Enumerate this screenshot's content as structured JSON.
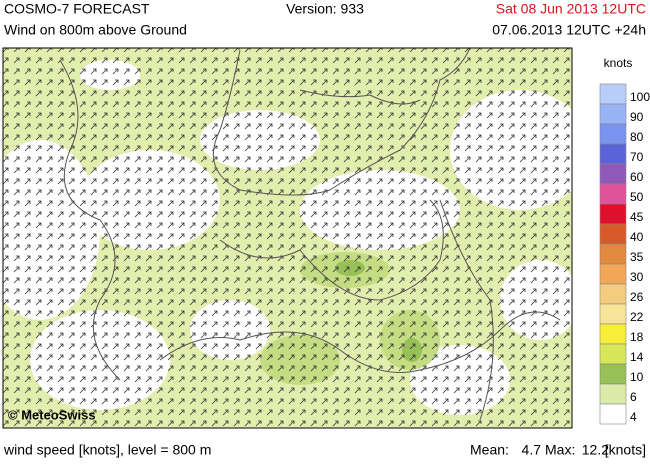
{
  "header": {
    "title": "COSMO-7 FORECAST",
    "version": "Version: 933",
    "valid_time": "Sat 08 Jun 2013 12UTC",
    "subtitle": "Wind on 800m above Ground",
    "run": "07.06.2013 12UTC +24h"
  },
  "map": {
    "credit": "© MeteoSwiss"
  },
  "legend": {
    "unit": "knots",
    "levels": [
      {
        "value": 100,
        "color": "#b8cdf8"
      },
      {
        "value": 90,
        "color": "#98b4f4"
      },
      {
        "value": 80,
        "color": "#7894ee"
      },
      {
        "value": 70,
        "color": "#5a64d8"
      },
      {
        "value": 60,
        "color": "#9058b8"
      },
      {
        "value": 50,
        "color": "#e0529c"
      },
      {
        "value": 45,
        "color": "#e0102c"
      },
      {
        "value": 40,
        "color": "#d85a2a"
      },
      {
        "value": 35,
        "color": "#e08a40"
      },
      {
        "value": 30,
        "color": "#f0a858"
      },
      {
        "value": 26,
        "color": "#f4cc80"
      },
      {
        "value": 22,
        "color": "#f8e498"
      },
      {
        "value": 18,
        "color": "#f8ee3a"
      },
      {
        "value": 14,
        "color": "#d6e858"
      },
      {
        "value": 10,
        "color": "#98c058"
      },
      {
        "value": 6,
        "color": "#dcebaa"
      },
      {
        "value": 4,
        "color": "#ffffff"
      }
    ]
  },
  "footer": {
    "description": "wind speed [knots], level = 800 m",
    "mean_label": "Mean:",
    "mean": 4.7,
    "max_label": "Max:",
    "max": 12.2,
    "unit": "[knots]"
  }
}
